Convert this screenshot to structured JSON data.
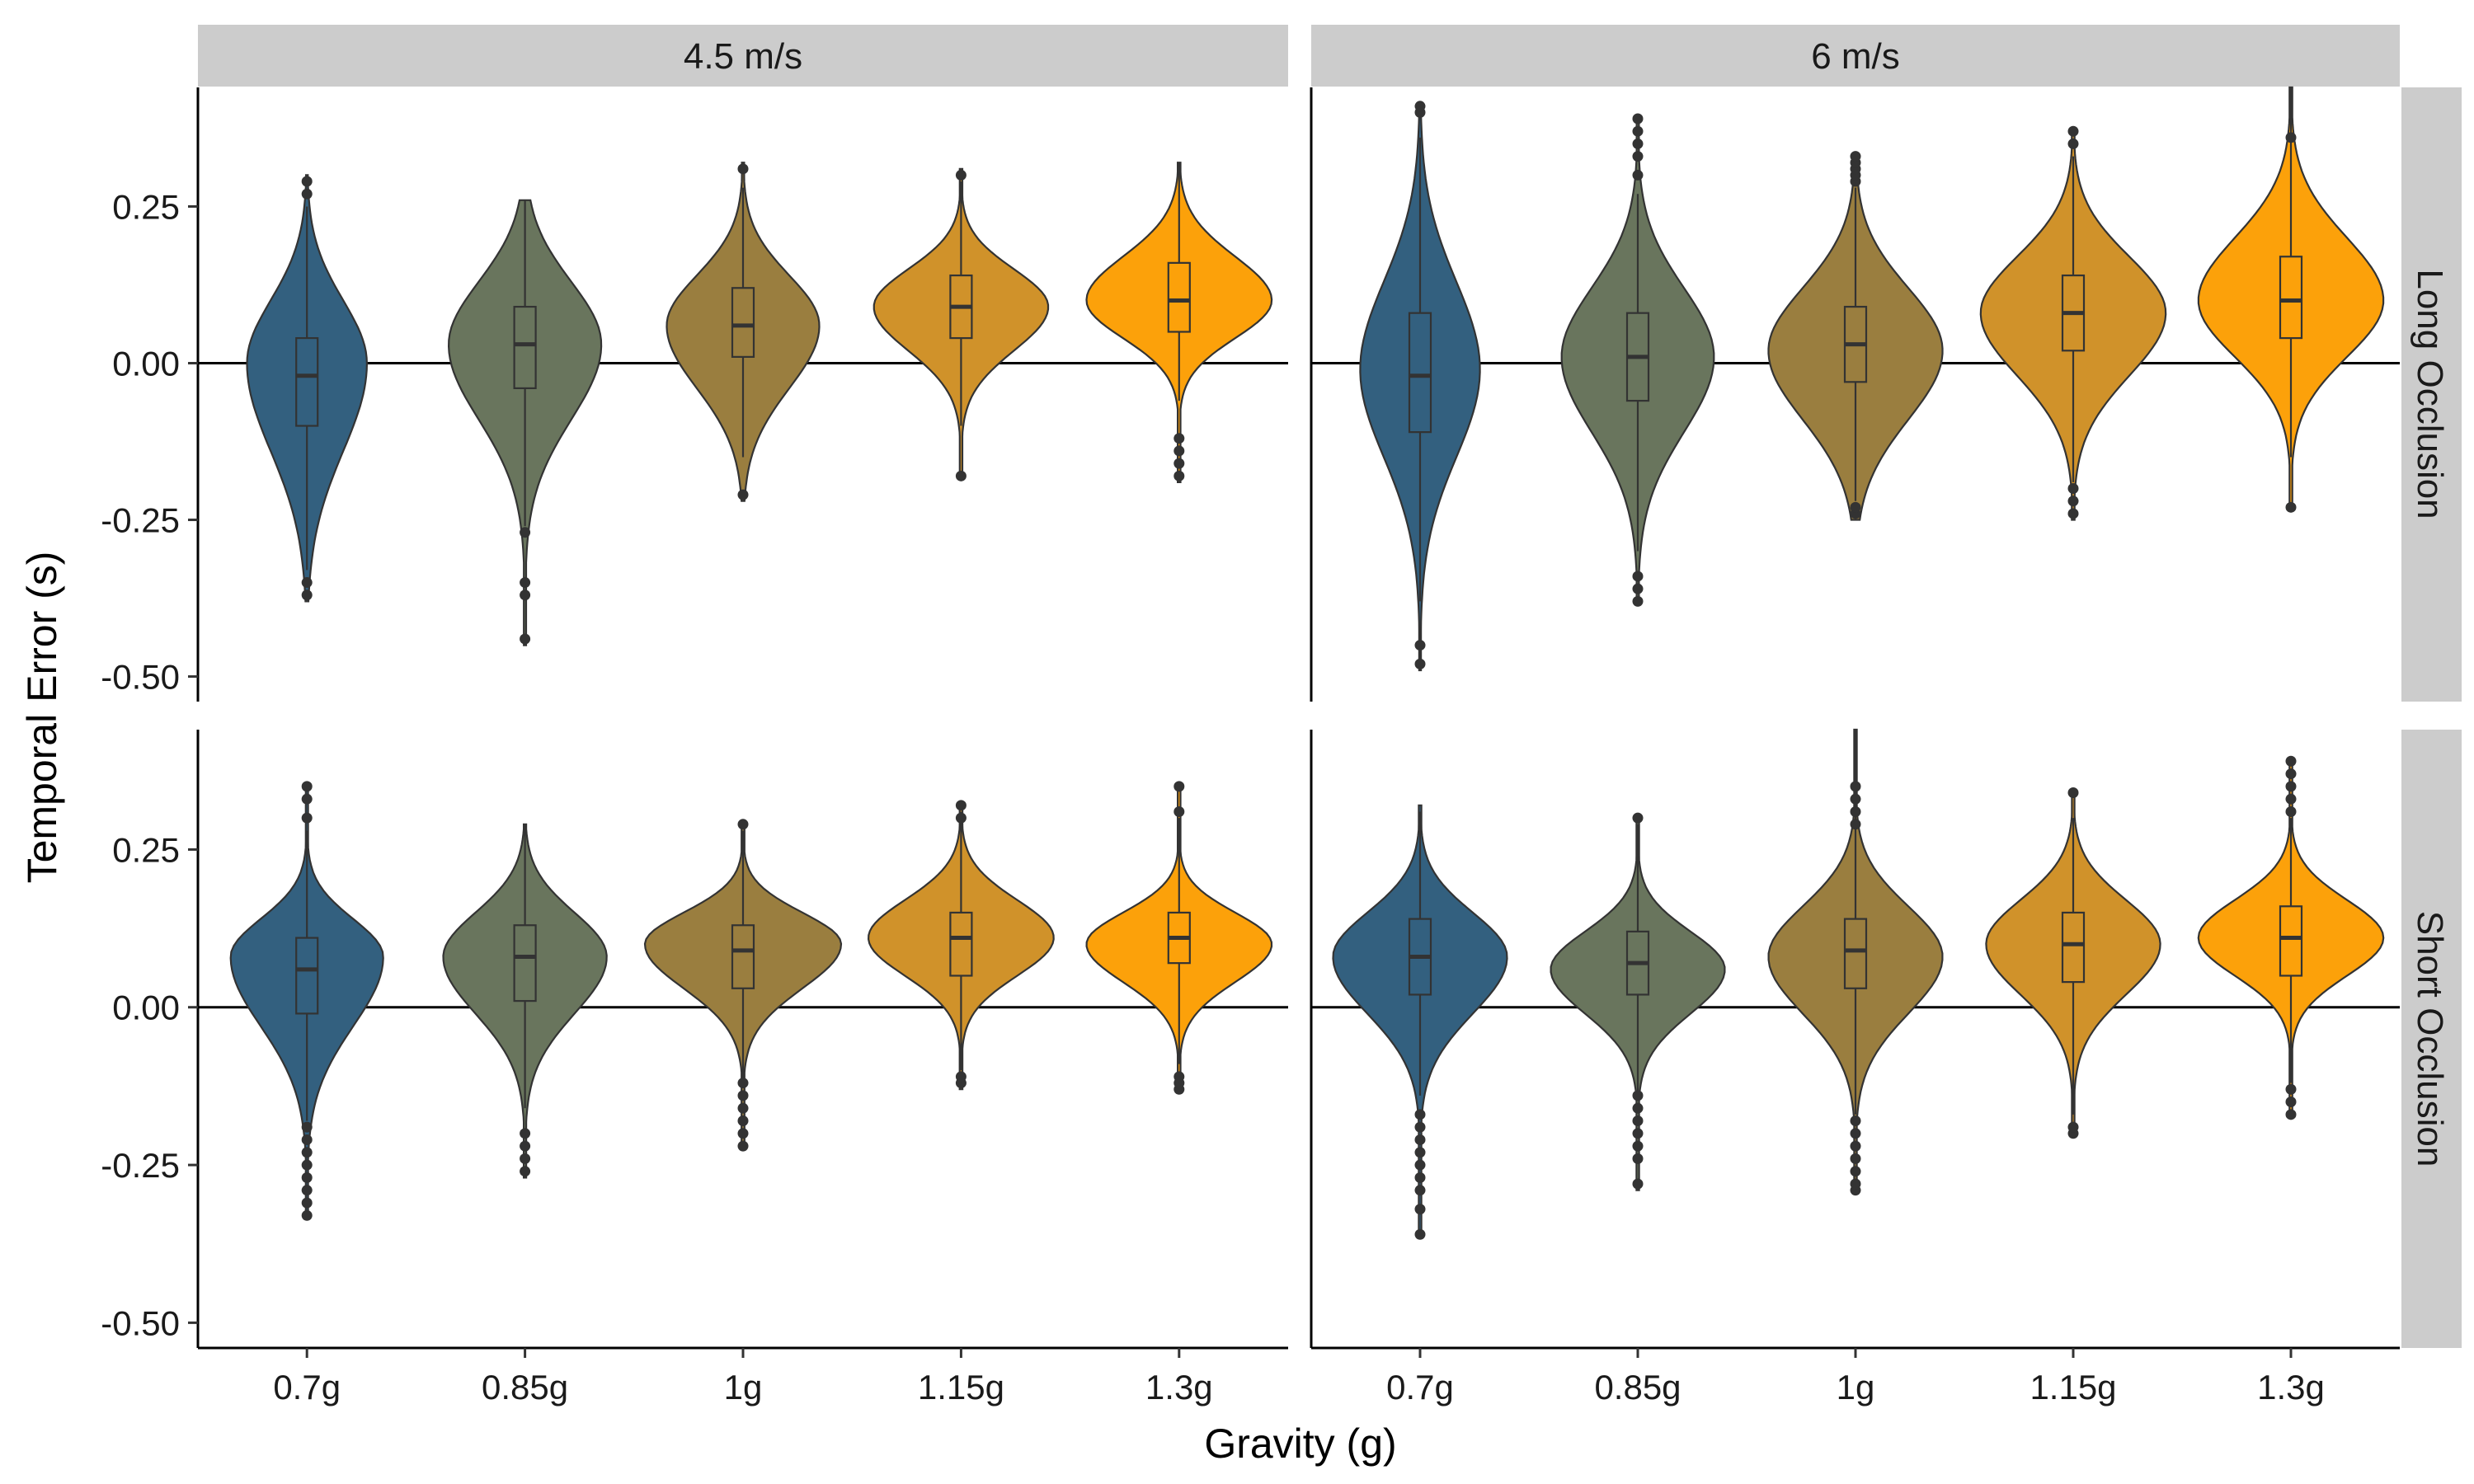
{
  "chart_data": {
    "type": "violin",
    "xlabel": "Gravity (g)",
    "ylabel": "Temporal Error (s)",
    "categories": [
      "0.7g",
      "0.85g",
      "1g",
      "1.15g",
      "1.3g"
    ],
    "y_ticks": [
      "0.25",
      "0.00",
      "-0.25",
      "-0.50"
    ],
    "y_tick_values": [
      0.25,
      0,
      -0.25,
      -0.5
    ],
    "ylim": [
      -0.54,
      0.44
    ],
    "column_facets": [
      "4.5 m/s",
      "6 m/s"
    ],
    "row_facets": [
      "Long Occlusion",
      "Short Occlusion"
    ],
    "colors": [
      "#33607f",
      "#69755d",
      "#9a7e3f",
      "#d0922a",
      "#fca10a"
    ],
    "reference_line": 0,
    "panels": [
      {
        "column": "4.5 m/s",
        "row": "Long Occlusion",
        "groups": [
          {
            "category": "0.7g",
            "min": -0.38,
            "max": 0.3,
            "q1": -0.1,
            "median": -0.02,
            "q3": 0.04,
            "whisker_low": -0.33,
            "whisker_high": 0.25,
            "width": 0.55,
            "mode": 0.0,
            "sd_low": 0.14,
            "sd_high": 0.1,
            "outliers": [
              -0.37,
              -0.35,
              0.27,
              0.29
            ]
          },
          {
            "category": "0.85g",
            "min": -0.45,
            "max": 0.26,
            "q1": -0.04,
            "median": 0.03,
            "q3": 0.09,
            "whisker_low": -0.26,
            "whisker_high": 0.26,
            "width": 0.7,
            "mode": 0.03,
            "sd_low": 0.12,
            "sd_high": 0.1,
            "outliers": [
              -0.44,
              -0.37,
              -0.35,
              -0.27
            ]
          },
          {
            "category": "1g",
            "min": -0.22,
            "max": 0.32,
            "q1": 0.01,
            "median": 0.06,
            "q3": 0.12,
            "whisker_low": -0.15,
            "whisker_high": 0.28,
            "width": 0.7,
            "mode": 0.06,
            "sd_low": 0.1,
            "sd_high": 0.08,
            "outliers": [
              -0.21,
              0.31
            ]
          },
          {
            "category": "1.15g",
            "min": -0.18,
            "max": 0.31,
            "q1": 0.04,
            "median": 0.09,
            "q3": 0.14,
            "whisker_low": -0.1,
            "whisker_high": 0.29,
            "width": 0.8,
            "mode": 0.09,
            "sd_low": 0.07,
            "sd_high": 0.06,
            "outliers": [
              -0.18,
              0.3
            ]
          },
          {
            "category": "1.3g",
            "min": -0.19,
            "max": 0.32,
            "q1": 0.05,
            "median": 0.1,
            "q3": 0.16,
            "whisker_low": -0.06,
            "whisker_high": 0.32,
            "width": 0.85,
            "mode": 0.1,
            "sd_low": 0.06,
            "sd_high": 0.07,
            "outliers": [
              -0.18,
              -0.16,
              -0.14,
              -0.12
            ]
          }
        ]
      },
      {
        "column": "6 m/s",
        "row": "Long Occlusion",
        "groups": [
          {
            "category": "0.7g",
            "min": -0.49,
            "max": 0.41,
            "q1": -0.11,
            "median": -0.02,
            "q3": 0.08,
            "whisker_low": -0.38,
            "whisker_high": 0.36,
            "width": 0.55,
            "mode": -0.01,
            "sd_low": 0.14,
            "sd_high": 0.14,
            "outliers": [
              -0.48,
              -0.45,
              0.4,
              0.41
            ]
          },
          {
            "category": "0.85g",
            "min": -0.38,
            "max": 0.39,
            "q1": -0.06,
            "median": 0.01,
            "q3": 0.08,
            "whisker_low": -0.3,
            "whisker_high": 0.27,
            "width": 0.7,
            "mode": 0.01,
            "sd_low": 0.12,
            "sd_high": 0.11,
            "outliers": [
              -0.38,
              -0.36,
              -0.34,
              0.3,
              0.33,
              0.35,
              0.37,
              0.39
            ]
          },
          {
            "category": "1g",
            "min": -0.25,
            "max": 0.33,
            "q1": -0.03,
            "median": 0.03,
            "q3": 0.09,
            "whisker_low": -0.22,
            "whisker_high": 0.28,
            "width": 0.8,
            "mode": 0.02,
            "sd_low": 0.11,
            "sd_high": 0.1,
            "outliers": [
              -0.24,
              -0.23,
              0.29,
              0.3,
              0.31,
              0.32,
              0.33
            ]
          },
          {
            "category": "1.15g",
            "min": -0.25,
            "max": 0.37,
            "q1": 0.02,
            "median": 0.08,
            "q3": 0.14,
            "whisker_low": -0.19,
            "whisker_high": 0.33,
            "width": 0.85,
            "mode": 0.08,
            "sd_low": 0.1,
            "sd_high": 0.09,
            "outliers": [
              -0.24,
              -0.22,
              -0.2,
              0.35,
              0.37
            ]
          },
          {
            "category": "1.3g",
            "min": -0.23,
            "max": 0.44,
            "q1": 0.04,
            "median": 0.1,
            "q3": 0.17,
            "whisker_low": -0.15,
            "whisker_high": 0.44,
            "width": 0.85,
            "mode": 0.1,
            "sd_low": 0.09,
            "sd_high": 0.1,
            "outliers": [
              -0.23,
              0.36
            ]
          }
        ]
      },
      {
        "column": "4.5 m/s",
        "row": "Short Occlusion",
        "groups": [
          {
            "category": "0.7g",
            "min": -0.33,
            "max": 0.35,
            "q1": -0.01,
            "median": 0.06,
            "q3": 0.11,
            "whisker_low": -0.18,
            "whisker_high": 0.28,
            "width": 0.7,
            "mode": 0.08,
            "sd_low": 0.11,
            "sd_high": 0.06,
            "outliers": [
              -0.33,
              -0.31,
              -0.29,
              -0.27,
              -0.25,
              -0.23,
              -0.21,
              -0.19,
              0.3,
              0.33,
              0.35
            ]
          },
          {
            "category": "0.85g",
            "min": -0.27,
            "max": 0.29,
            "q1": 0.01,
            "median": 0.08,
            "q3": 0.13,
            "whisker_low": -0.16,
            "whisker_high": 0.29,
            "width": 0.75,
            "mode": 0.08,
            "sd_low": 0.09,
            "sd_high": 0.07,
            "outliers": [
              -0.26,
              -0.24,
              -0.22,
              -0.2
            ]
          },
          {
            "category": "1g",
            "min": -0.22,
            "max": 0.29,
            "q1": 0.03,
            "median": 0.09,
            "q3": 0.13,
            "whisker_low": -0.12,
            "whisker_high": 0.28,
            "width": 0.9,
            "mode": 0.1,
            "sd_low": 0.07,
            "sd_high": 0.05,
            "outliers": [
              -0.22,
              -0.2,
              -0.18,
              -0.16,
              -0.14,
              -0.12,
              0.29
            ]
          },
          {
            "category": "1.15g",
            "min": -0.13,
            "max": 0.32,
            "q1": 0.05,
            "median": 0.11,
            "q3": 0.15,
            "whisker_low": -0.1,
            "whisker_high": 0.31,
            "width": 0.85,
            "mode": 0.11,
            "sd_low": 0.06,
            "sd_high": 0.06,
            "outliers": [
              -0.12,
              -0.11,
              0.3,
              0.32
            ]
          },
          {
            "category": "1.3g",
            "min": -0.13,
            "max": 0.35,
            "q1": 0.07,
            "median": 0.11,
            "q3": 0.15,
            "whisker_low": -0.09,
            "whisker_high": 0.3,
            "width": 0.85,
            "mode": 0.1,
            "sd_low": 0.06,
            "sd_high": 0.05,
            "outliers": [
              -0.13,
              -0.12,
              -0.11,
              0.31,
              0.35
            ]
          }
        ]
      },
      {
        "column": "6 m/s",
        "row": "Short Occlusion",
        "groups": [
          {
            "category": "0.7g",
            "min": -0.36,
            "max": 0.32,
            "q1": 0.02,
            "median": 0.08,
            "q3": 0.14,
            "whisker_low": -0.14,
            "whisker_high": 0.31,
            "width": 0.8,
            "mode": 0.08,
            "sd_low": 0.09,
            "sd_high": 0.07,
            "outliers": [
              -0.36,
              -0.32,
              -0.29,
              -0.27,
              -0.25,
              -0.23,
              -0.21,
              -0.19,
              -0.17
            ]
          },
          {
            "category": "0.85g",
            "min": -0.29,
            "max": 0.3,
            "q1": 0.02,
            "median": 0.07,
            "q3": 0.12,
            "whisker_low": -0.14,
            "whisker_high": 0.29,
            "width": 0.8,
            "mode": 0.06,
            "sd_low": 0.07,
            "sd_high": 0.06,
            "outliers": [
              -0.28,
              -0.24,
              -0.22,
              -0.2,
              -0.18,
              -0.16,
              -0.14,
              0.3
            ]
          },
          {
            "category": "1g",
            "min": -0.29,
            "max": 0.44,
            "q1": 0.03,
            "median": 0.09,
            "q3": 0.14,
            "whisker_low": -0.17,
            "whisker_high": 0.44,
            "width": 0.8,
            "mode": 0.08,
            "sd_low": 0.09,
            "sd_high": 0.08,
            "outliers": [
              -0.29,
              -0.28,
              -0.26,
              -0.24,
              -0.22,
              -0.2,
              -0.18,
              0.29,
              0.31,
              0.33,
              0.35
            ]
          },
          {
            "category": "1.15g",
            "min": -0.2,
            "max": 0.34,
            "q1": 0.04,
            "median": 0.1,
            "q3": 0.15,
            "whisker_low": -0.17,
            "whisker_high": 0.3,
            "width": 0.8,
            "mode": 0.1,
            "sd_low": 0.08,
            "sd_high": 0.07,
            "outliers": [
              -0.2,
              -0.19,
              0.34
            ]
          },
          {
            "category": "1.3g",
            "min": -0.17,
            "max": 0.39,
            "q1": 0.05,
            "median": 0.11,
            "q3": 0.16,
            "whisker_low": -0.12,
            "whisker_high": 0.3,
            "width": 0.85,
            "mode": 0.11,
            "sd_low": 0.06,
            "sd_high": 0.06,
            "outliers": [
              -0.17,
              -0.15,
              -0.13,
              0.31,
              0.33,
              0.35,
              0.37,
              0.39
            ]
          }
        ]
      }
    ]
  }
}
